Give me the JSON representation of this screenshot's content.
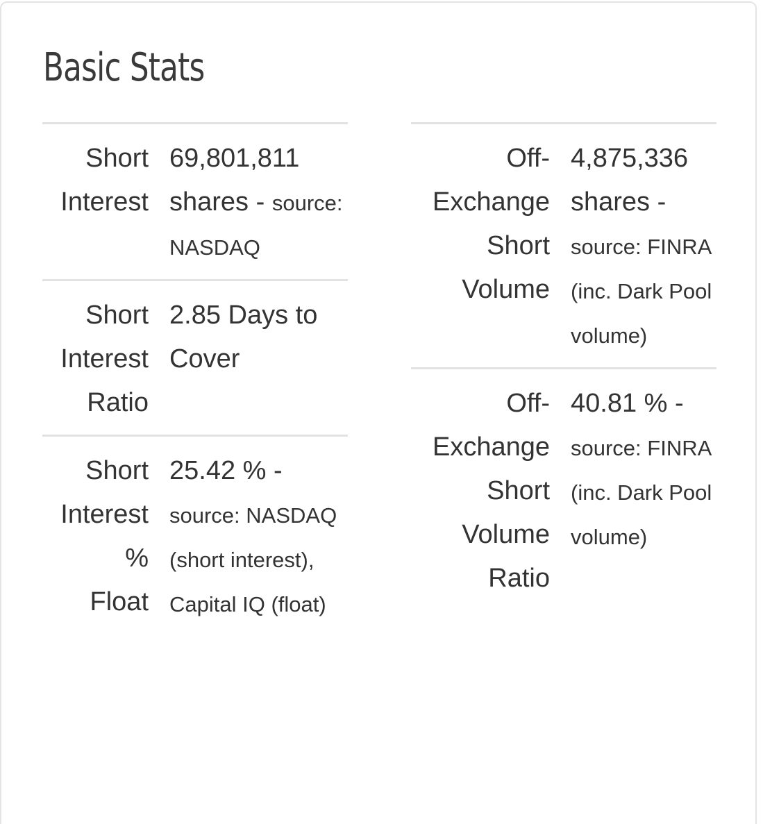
{
  "title": "Basic Stats",
  "left_stats": [
    {
      "label_lines": [
        "Short",
        "Interest"
      ],
      "value_main": "69,801,811 shares -",
      "value_source": "source: NASDAQ"
    },
    {
      "label_lines": [
        "Short",
        "Interest",
        "Ratio"
      ],
      "value_main": "2.85 Days to Cover",
      "value_source": ""
    },
    {
      "label_lines": [
        "Short",
        "Interest",
        "%",
        "Float"
      ],
      "value_main": "25.42 % -",
      "value_source": "source: NASDAQ (short interest), Capital IQ (float)"
    }
  ],
  "right_stats": [
    {
      "label_lines": [
        "Off-",
        "Exchange",
        "Short",
        "Volume"
      ],
      "value_main": "4,875,336 shares -",
      "value_source": "source: FINRA (inc. Dark Pool volume)"
    },
    {
      "label_lines": [
        "Off-",
        "Exchange",
        "Short",
        "Volume",
        "Ratio"
      ],
      "value_main": "40.81 % -",
      "value_source": "source: FINRA (inc. Dark Pool volume)"
    }
  ]
}
